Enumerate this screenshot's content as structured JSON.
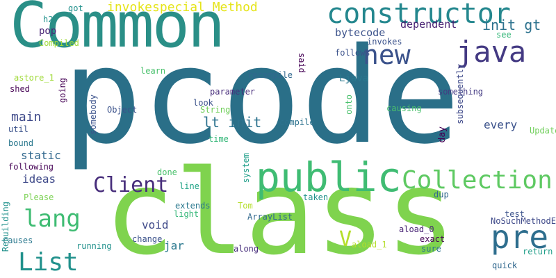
{
  "words": [
    {
      "text": "pcode",
      "color": "#2a6f88"
    },
    {
      "text": "class",
      "color": "#7fd34e"
    },
    {
      "text": "Common",
      "color": "#2a8f87"
    },
    {
      "text": "public",
      "color": "#3fbc73"
    },
    {
      "text": "constructor",
      "color": "#24878e"
    },
    {
      "text": "java",
      "color": "#443a83"
    },
    {
      "text": "new",
      "color": "#3b528b"
    },
    {
      "text": "pre",
      "color": "#2e6e8e"
    },
    {
      "text": "Collection",
      "color": "#5ec962"
    },
    {
      "text": "lang",
      "color": "#3fbc73"
    },
    {
      "text": "List",
      "color": "#21918c"
    },
    {
      "text": "Client",
      "color": "#472d7b"
    },
    {
      "text": "invokespecial Method",
      "color": "#e5e419"
    },
    {
      "text": "init gt",
      "color": "#2c728e"
    },
    {
      "text": "lt init",
      "color": "#2c728e"
    },
    {
      "text": "V",
      "color": "#b5de2b"
    },
    {
      "text": "dependent",
      "color": "#482173"
    },
    {
      "text": "bytecode",
      "color": "#3b528b"
    },
    {
      "text": "main",
      "color": "#3e4989"
    },
    {
      "text": "void",
      "color": "#3e4989"
    },
    {
      "text": "jar",
      "color": "#2a788e"
    },
    {
      "text": "every",
      "color": "#3b528b"
    },
    {
      "text": "static",
      "color": "#31688e"
    },
    {
      "text": "ideas",
      "color": "#3e4989"
    },
    {
      "text": "pop",
      "color": "#482475"
    },
    {
      "text": "Ljava",
      "color": "#2a788e"
    },
    {
      "text": "got",
      "color": "#21918c"
    },
    {
      "text": "h2",
      "color": "#21918c"
    },
    {
      "text": "Compiled",
      "color": "#a0da39"
    },
    {
      "text": "invokes",
      "color": "#3b528b"
    },
    {
      "text": "see",
      "color": "#35b779"
    },
    {
      "text": "follows",
      "color": "#3b528b"
    },
    {
      "text": "astore_1",
      "color": "#a0da39"
    },
    {
      "text": "learn",
      "color": "#4ac16d"
    },
    {
      "text": "recompile",
      "color": "#31688e"
    },
    {
      "text": "shed",
      "color": "#440154"
    },
    {
      "text": "parameter",
      "color": "#472d7b"
    },
    {
      "text": "something",
      "color": "#443a83"
    },
    {
      "text": "look",
      "color": "#3b528b"
    },
    {
      "text": "String",
      "color": "#6ece58"
    },
    {
      "text": "Object",
      "color": "#3b528b"
    },
    {
      "text": "causing",
      "color": "#4ac16d"
    },
    {
      "text": "compile",
      "color": "#2c728e"
    },
    {
      "text": "util",
      "color": "#3b528b"
    },
    {
      "text": "Update",
      "color": "#6ece58"
    },
    {
      "text": "bound",
      "color": "#2a788e"
    },
    {
      "text": "time",
      "color": "#35b779"
    },
    {
      "text": "following",
      "color": "#440154"
    },
    {
      "text": "done",
      "color": "#4ac16d"
    },
    {
      "text": "Please",
      "color": "#7ad151"
    },
    {
      "text": "line",
      "color": "#20a386"
    },
    {
      "text": "extends",
      "color": "#2a788e"
    },
    {
      "text": "dup",
      "color": "#31688e"
    },
    {
      "text": "taken",
      "color": "#21918c"
    },
    {
      "text": "light",
      "color": "#35b779"
    },
    {
      "text": "Tom",
      "color": "#b5de2b"
    },
    {
      "text": "test",
      "color": "#3b528b"
    },
    {
      "text": "NoSuchMethodError",
      "color": "#3e4989"
    },
    {
      "text": "ArrayList",
      "color": "#31688e"
    },
    {
      "text": "aload_0",
      "color": "#482475"
    },
    {
      "text": "change",
      "color": "#3b528b"
    },
    {
      "text": "exact",
      "color": "#440154"
    },
    {
      "text": "causes",
      "color": "#2a788e"
    },
    {
      "text": "running",
      "color": "#21918c"
    },
    {
      "text": "aload_1",
      "color": "#b5de2b"
    },
    {
      "text": "sure",
      "color": "#2c728e"
    },
    {
      "text": "return",
      "color": "#1f9e89"
    },
    {
      "text": "along",
      "color": "#472d7b"
    },
    {
      "text": "quick",
      "color": "#31688e"
    },
    {
      "text": "said",
      "color": "#440154"
    },
    {
      "text": "subsequently",
      "color": "#3e4989"
    },
    {
      "text": "going",
      "color": "#440154"
    },
    {
      "text": "onto",
      "color": "#4ac16d"
    },
    {
      "text": "somebody",
      "color": "#3b528b"
    },
    {
      "text": "day",
      "color": "#440154"
    },
    {
      "text": "system",
      "color": "#1f9e89"
    },
    {
      "text": "Rebuilding",
      "color": "#21918c"
    }
  ]
}
